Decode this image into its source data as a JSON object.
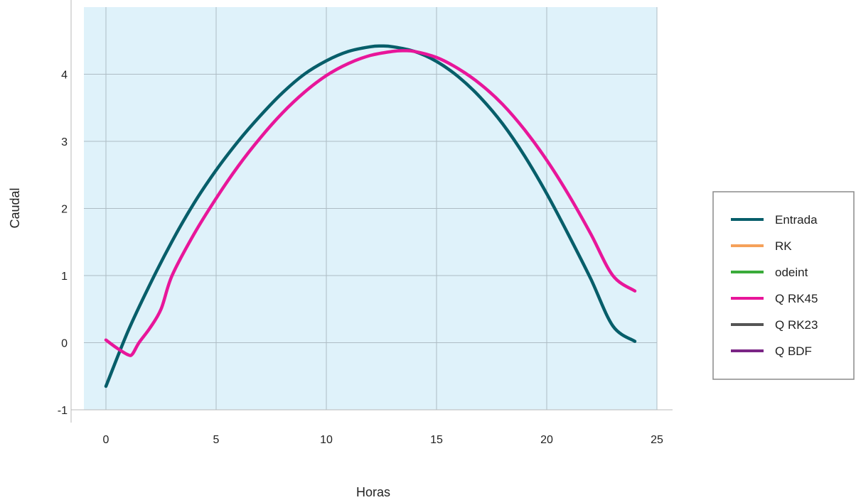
{
  "chart_data": {
    "type": "line",
    "title": "",
    "xlabel": "Horas",
    "ylabel": "Caudal",
    "xlim": [
      -1,
      25
    ],
    "ylim": [
      -1,
      5
    ],
    "xticks": [
      0,
      5,
      10,
      15,
      20,
      25
    ],
    "yticks": [
      -1,
      0,
      1,
      2,
      3,
      4
    ],
    "xtick_labels": [
      "0",
      "5",
      "10",
      "15",
      "20",
      "25"
    ],
    "ytick_labels": [
      "-1",
      "0",
      "1",
      "2",
      "3",
      "4"
    ],
    "grid": true,
    "plot_background": "#dff2fa",
    "legend_position": "right",
    "series": [
      {
        "name": "Entrada",
        "color": "#075e6a",
        "x": [
          0,
          1,
          2,
          3,
          4,
          5,
          6,
          7,
          8,
          9,
          10,
          11,
          12,
          12.5,
          13,
          14,
          15,
          16,
          17,
          18,
          19,
          20,
          21,
          22,
          23,
          24
        ],
        "y": [
          -0.65,
          0.17,
          0.87,
          1.51,
          2.08,
          2.57,
          3.0,
          3.38,
          3.72,
          4.0,
          4.2,
          4.34,
          4.41,
          4.42,
          4.41,
          4.34,
          4.19,
          3.96,
          3.65,
          3.26,
          2.78,
          2.22,
          1.6,
          0.95,
          0.25,
          0.02
        ]
      },
      {
        "name": "RK",
        "color": "#f5a15a",
        "x": [],
        "y": []
      },
      {
        "name": "odeint",
        "color": "#3aab3a",
        "x": [],
        "y": []
      },
      {
        "name": "Q RK45",
        "color": "#e8169a",
        "x": [
          0,
          0.5,
          1.0,
          1.2,
          1.5,
          2.0,
          2.5,
          3,
          4,
          5,
          6,
          7,
          8,
          9,
          10,
          11,
          12,
          13,
          13.5,
          14,
          15,
          16,
          17,
          18,
          19,
          20,
          21,
          22,
          23,
          24
        ],
        "y": [
          0.04,
          -0.08,
          -0.18,
          -0.17,
          0.0,
          0.22,
          0.5,
          1.0,
          1.62,
          2.15,
          2.63,
          3.05,
          3.42,
          3.73,
          3.98,
          4.16,
          4.28,
          4.34,
          4.35,
          4.34,
          4.25,
          4.08,
          3.85,
          3.55,
          3.17,
          2.72,
          2.2,
          1.62,
          1.0,
          0.77
        ]
      },
      {
        "name": "Q RK23",
        "color": "#555555",
        "x": [],
        "y": []
      },
      {
        "name": "Q BDF",
        "color": "#7b2585",
        "x": [],
        "y": []
      }
    ]
  }
}
